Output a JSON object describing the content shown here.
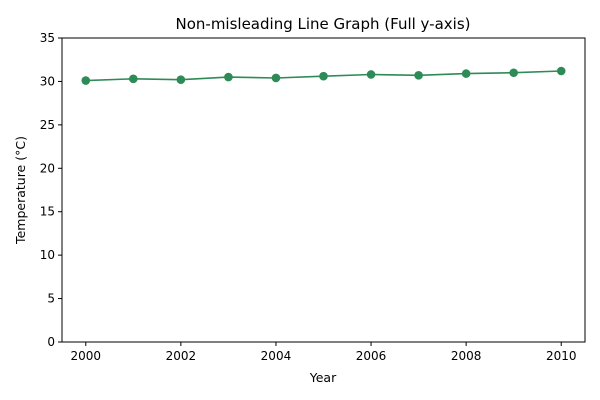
{
  "chart_data": {
    "type": "line",
    "title": "Non-misleading Line Graph (Full y-axis)",
    "xlabel": "Year",
    "ylabel": "Temperature (°C)",
    "x": [
      2000,
      2001,
      2002,
      2003,
      2004,
      2005,
      2006,
      2007,
      2008,
      2009,
      2010
    ],
    "series": [
      {
        "values": [
          30.1,
          30.3,
          30.2,
          30.5,
          30.4,
          30.6,
          30.8,
          30.7,
          30.9,
          31.0,
          31.2
        ],
        "color": "#2e8b57"
      }
    ],
    "xlim": [
      1999.5,
      2010.5
    ],
    "ylim": [
      0,
      35
    ],
    "xticks": [
      2000,
      2002,
      2004,
      2006,
      2008,
      2010
    ],
    "yticks": [
      0,
      5,
      10,
      15,
      20,
      25,
      30,
      35
    ],
    "grid": false,
    "legend": "none"
  }
}
